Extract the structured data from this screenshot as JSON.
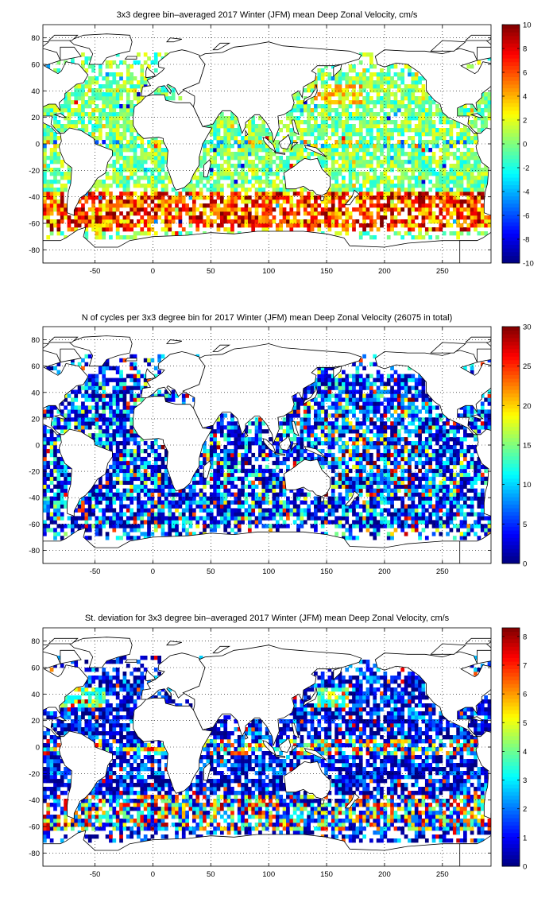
{
  "figure": {
    "panels": 3,
    "background": "#ffffff",
    "land_color": "#ffffff",
    "coastline_color": "#000000"
  },
  "colormap": {
    "name": "jet",
    "stops": [
      "#00007f",
      "#0000ff",
      "#007fff",
      "#00ffff",
      "#7fff7f",
      "#ffff00",
      "#ff7f00",
      "#ff0000",
      "#7f0000"
    ]
  },
  "chart_data": [
    {
      "type": "heatmap",
      "title": "3x3 degree bin–averaged 2017 Winter (JFM) mean Deep Zonal Velocity, cm/s",
      "xlabel": "",
      "ylabel": "",
      "xlim": [
        -95,
        292
      ],
      "ylim": [
        -90,
        90
      ],
      "grid": true,
      "grid_style": "dotted",
      "bin_size_deg": 3,
      "xticks": [
        -50,
        0,
        50,
        100,
        150,
        200,
        250
      ],
      "yticks": [
        -80,
        -60,
        -40,
        -20,
        0,
        20,
        40,
        60,
        80
      ],
      "colorbar": {
        "min": -10,
        "max": 10,
        "ticks": [
          -10,
          -8,
          -6,
          -4,
          -2,
          0,
          2,
          4,
          6,
          8,
          10
        ]
      }
    },
    {
      "type": "heatmap",
      "title": "N of cycles per 3x3 degree bin for 2017 Winter (JFM) mean Deep Zonal Velocity (26075 in total)",
      "xlabel": "",
      "ylabel": "",
      "xlim": [
        -95,
        292
      ],
      "ylim": [
        -90,
        90
      ],
      "grid": true,
      "grid_style": "dotted",
      "bin_size_deg": 3,
      "total_cycles": 26075,
      "xticks": [
        -50,
        0,
        50,
        100,
        150,
        200,
        250
      ],
      "yticks": [
        -80,
        -60,
        -40,
        -20,
        0,
        20,
        40,
        60,
        80
      ],
      "colorbar": {
        "min": 0,
        "max": 30,
        "ticks": [
          0,
          5,
          10,
          15,
          20,
          25,
          30
        ]
      }
    },
    {
      "type": "heatmap",
      "title": "St. deviation for 3x3 degree bin–averaged 2017 Winter (JFM) mean Deep Zonal Velocity, cm/s",
      "xlabel": "",
      "ylabel": "",
      "xlim": [
        -95,
        292
      ],
      "ylim": [
        -90,
        90
      ],
      "grid": true,
      "grid_style": "dotted",
      "bin_size_deg": 3,
      "xticks": [
        -50,
        0,
        50,
        100,
        150,
        200,
        250
      ],
      "yticks": [
        -80,
        -60,
        -40,
        -20,
        0,
        20,
        40,
        60,
        80
      ],
      "colorbar": {
        "min": 0,
        "max": 8.3,
        "ticks": [
          0,
          1,
          2,
          3,
          4,
          5,
          6,
          7,
          8
        ]
      }
    }
  ]
}
